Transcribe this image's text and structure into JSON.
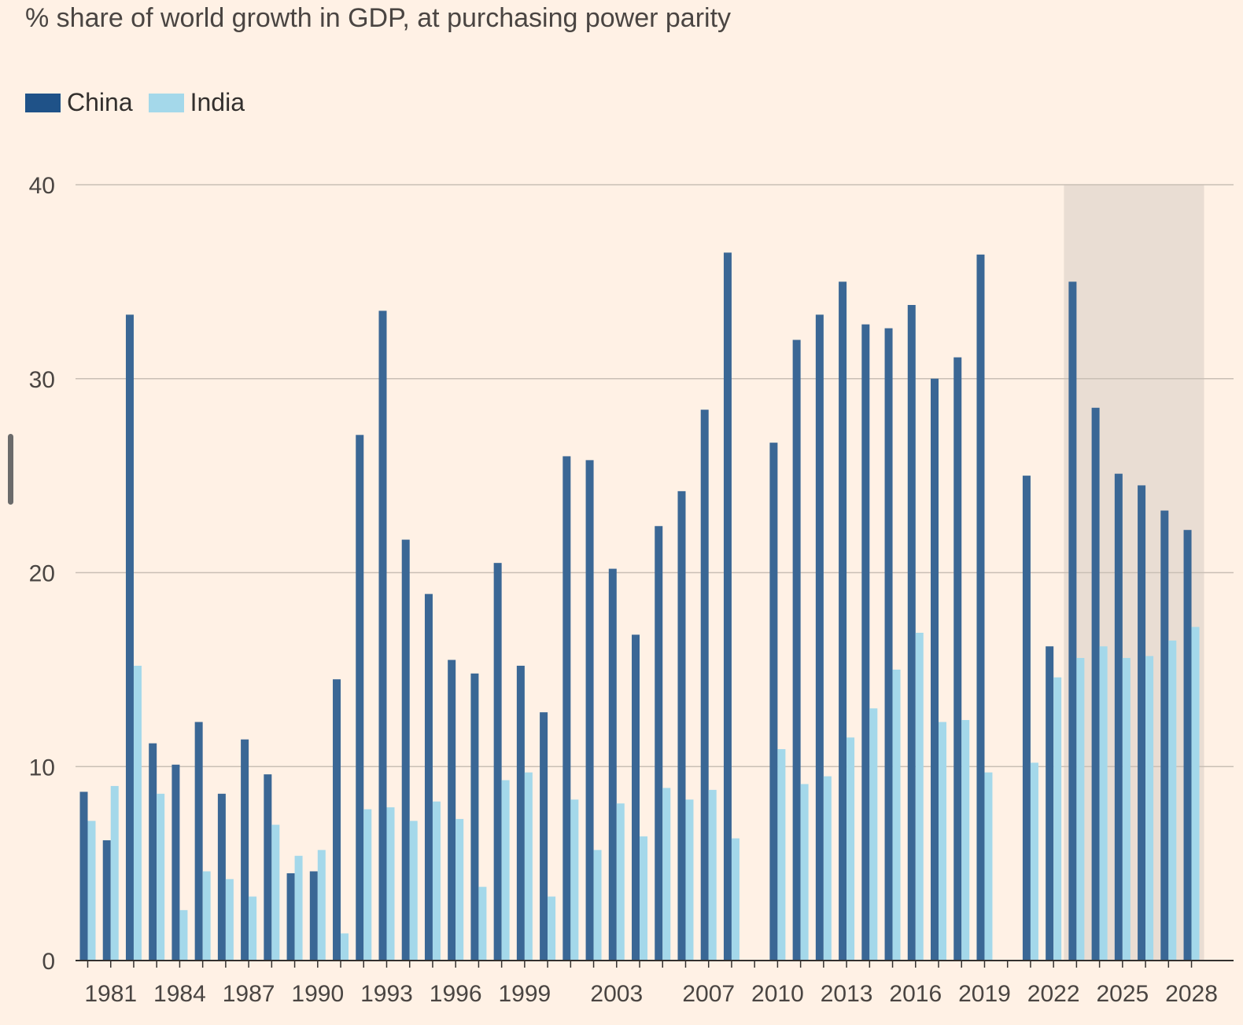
{
  "chart_data": {
    "type": "bar",
    "title": "% share of world growth in GDP, at purchasing power parity",
    "xlabel": "",
    "ylabel": "",
    "ylim": [
      0,
      40
    ],
    "yticks": [
      0,
      10,
      20,
      30,
      40
    ],
    "grid": true,
    "legend_position": "top-left",
    "highlight_range": [
      "2023",
      "2028"
    ],
    "categories": [
      "1980",
      "1981",
      "1982",
      "1983",
      "1984",
      "1985",
      "1986",
      "1987",
      "1988",
      "1989",
      "1990",
      "1991",
      "1992",
      "1993",
      "1994",
      "1995",
      "1996",
      "1997",
      "1998",
      "1999",
      "2000",
      "2001",
      "2002",
      "2003",
      "2004",
      "2005",
      "2006",
      "2007",
      "2008",
      "2009",
      "2010",
      "2011",
      "2012",
      "2013",
      "2014",
      "2015",
      "2016",
      "2017",
      "2018",
      "2019",
      "2020",
      "2021",
      "2022",
      "2023",
      "2024",
      "2025",
      "2026",
      "2027",
      "2028"
    ],
    "x_tick_labels": [
      "1981",
      "1984",
      "1987",
      "1990",
      "1993",
      "1996",
      "1999",
      "2003",
      "2007",
      "2010",
      "2013",
      "2016",
      "2019",
      "2022",
      "2025",
      "2028"
    ],
    "series": [
      {
        "name": "China",
        "color": "#3a6795",
        "values": [
          8.7,
          6.2,
          33.3,
          11.2,
          10.1,
          12.3,
          8.6,
          11.4,
          9.6,
          4.5,
          4.6,
          14.5,
          27.1,
          33.5,
          21.7,
          18.9,
          15.5,
          14.8,
          20.5,
          15.2,
          12.8,
          26.0,
          25.8,
          20.2,
          16.8,
          22.4,
          24.2,
          28.4,
          36.5,
          null,
          26.7,
          32.0,
          33.3,
          35.0,
          32.8,
          32.6,
          33.8,
          30.0,
          31.1,
          36.4,
          null,
          25.0,
          16.2,
          35.0,
          28.5,
          25.1,
          24.5,
          23.2,
          22.2
        ]
      },
      {
        "name": "India",
        "color": "#a4d8ea",
        "values": [
          7.2,
          9.0,
          15.2,
          8.6,
          2.6,
          4.6,
          4.2,
          3.3,
          7.0,
          5.4,
          5.7,
          1.4,
          7.8,
          7.9,
          7.2,
          8.2,
          7.3,
          3.8,
          9.3,
          9.7,
          3.3,
          8.3,
          5.7,
          8.1,
          6.4,
          8.9,
          8.3,
          8.8,
          6.3,
          null,
          10.9,
          9.1,
          9.5,
          11.5,
          13.0,
          15.0,
          16.9,
          12.3,
          12.4,
          9.7,
          null,
          10.2,
          14.6,
          15.6,
          16.2,
          15.6,
          15.7,
          16.5,
          17.2
        ]
      }
    ]
  }
}
